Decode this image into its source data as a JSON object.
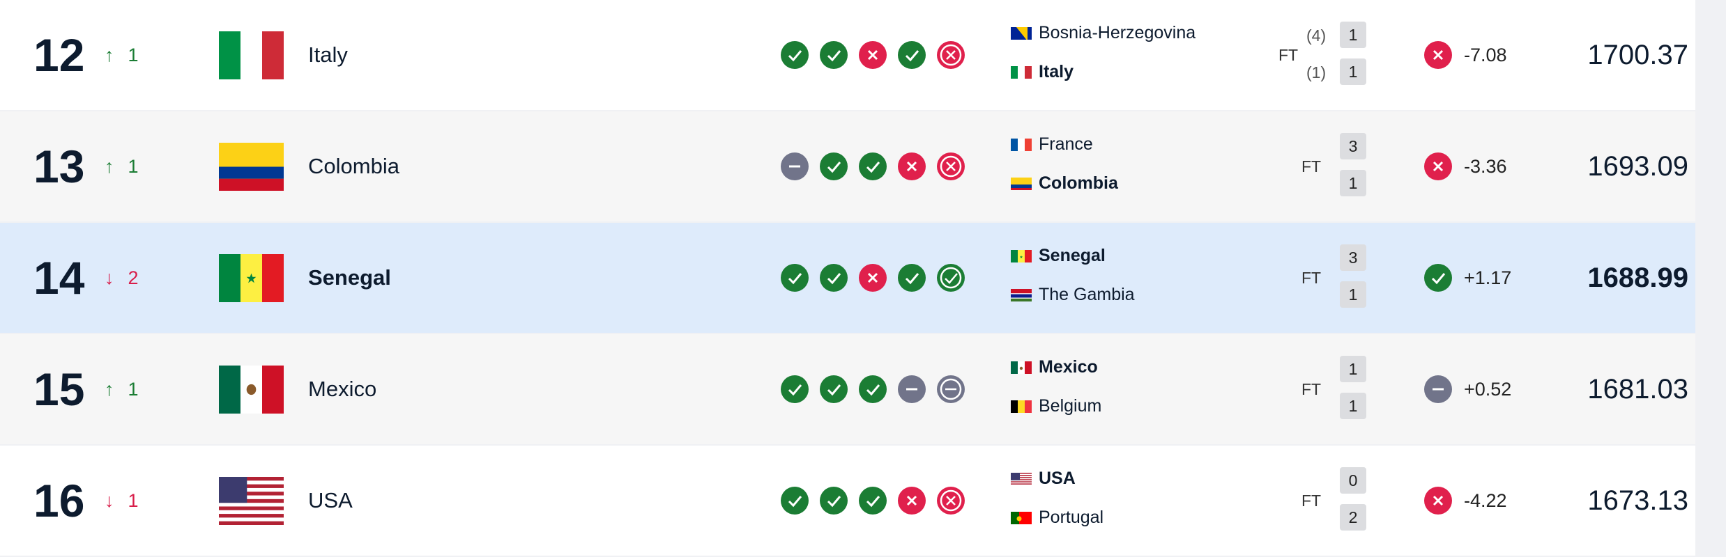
{
  "colors": {
    "win": "#1b7d34",
    "loss": "#e0204c",
    "draw": "#71748a",
    "up": "#1b7d34",
    "down": "#d81e4a",
    "highlight": "#deebfb"
  },
  "rows": [
    {
      "rank": "12",
      "direction": "up",
      "change": "1",
      "country": "Italy",
      "flag": "italy",
      "form": [
        "W",
        "W",
        "L",
        "W",
        "L"
      ],
      "match": {
        "home": {
          "name": "Bosnia-Herzegovina",
          "flag": "bosnia",
          "bold": false,
          "score": "1",
          "pens": "(4)"
        },
        "away": {
          "name": "Italy",
          "flag": "italy",
          "bold": true,
          "score": "1",
          "pens": "(1)"
        },
        "status": "FT"
      },
      "result": "L",
      "delta": "-7.08",
      "points": "1700.37"
    },
    {
      "rank": "13",
      "direction": "up",
      "change": "1",
      "country": "Colombia",
      "flag": "colombia",
      "form": [
        "D",
        "W",
        "W",
        "L",
        "L"
      ],
      "match": {
        "home": {
          "name": "France",
          "flag": "france",
          "bold": false,
          "score": "3"
        },
        "away": {
          "name": "Colombia",
          "flag": "colombia",
          "bold": true,
          "score": "1"
        },
        "status": "FT"
      },
      "result": "L",
      "delta": "-3.36",
      "points": "1693.09"
    },
    {
      "rank": "14",
      "direction": "down",
      "change": "2",
      "country": "Senegal",
      "flag": "senegal",
      "highlighted": true,
      "form": [
        "W",
        "W",
        "L",
        "W",
        "W"
      ],
      "match": {
        "home": {
          "name": "Senegal",
          "flag": "senegal",
          "bold": true,
          "score": "3"
        },
        "away": {
          "name": "The Gambia",
          "flag": "gambia",
          "bold": false,
          "score": "1"
        },
        "status": "FT"
      },
      "result": "W",
      "delta": "+1.17",
      "points": "1688.99"
    },
    {
      "rank": "15",
      "direction": "up",
      "change": "1",
      "country": "Mexico",
      "flag": "mexico",
      "form": [
        "W",
        "W",
        "W",
        "D",
        "D"
      ],
      "match": {
        "home": {
          "name": "Mexico",
          "flag": "mexico",
          "bold": true,
          "score": "1"
        },
        "away": {
          "name": "Belgium",
          "flag": "belgium",
          "bold": false,
          "score": "1"
        },
        "status": "FT"
      },
      "result": "D",
      "delta": "+0.52",
      "points": "1681.03"
    },
    {
      "rank": "16",
      "direction": "down",
      "change": "1",
      "country": "USA",
      "flag": "usa",
      "form": [
        "W",
        "W",
        "W",
        "L",
        "L"
      ],
      "match": {
        "home": {
          "name": "USA",
          "flag": "usa",
          "bold": true,
          "score": "0"
        },
        "away": {
          "name": "Portugal",
          "flag": "portugal",
          "bold": false,
          "score": "2"
        },
        "status": "FT"
      },
      "result": "L",
      "delta": "-4.22",
      "points": "1673.13"
    }
  ]
}
